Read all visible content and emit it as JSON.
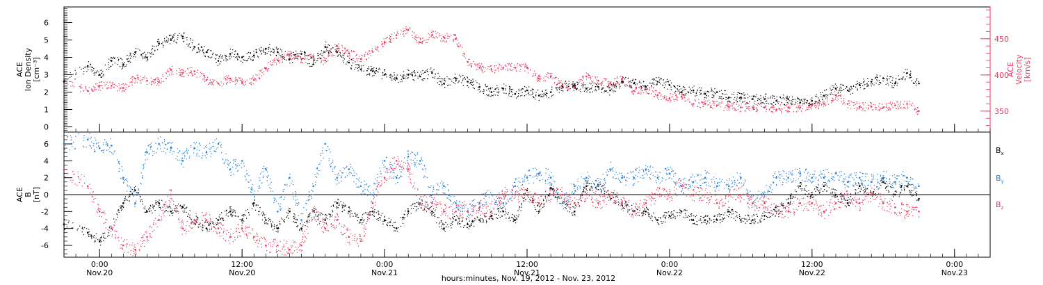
{
  "colors": {
    "axis": "#000000",
    "density": "#000000",
    "velocity": "#e8375f",
    "bx": "#000000",
    "by": "#1f7fdc",
    "bz": "#e8375f"
  },
  "chart_data": [
    {
      "type": "scatter",
      "panel": "top",
      "ylabel_lines": [
        "ACE",
        "Ion Density",
        "[cm⁻³]"
      ],
      "ylabel_right_lines": [
        "ACE",
        "Velocity",
        "[km/s]"
      ],
      "ylim": [
        -0.3,
        6.9
      ],
      "yticks": [
        "0",
        "1",
        "2",
        "3",
        "4",
        "5",
        "6"
      ],
      "ylim_right": [
        321,
        494
      ],
      "yticks_right": [
        "350",
        "400",
        "450"
      ],
      "xlim": [
        -3,
        75
      ],
      "series": [
        {
          "color_key": "density",
          "x": [
            -3,
            -1,
            0,
            1,
            2,
            3,
            4,
            5,
            6,
            7,
            8,
            9,
            10,
            11,
            12,
            13,
            14,
            15,
            16,
            17,
            18,
            19,
            20,
            21,
            22,
            23,
            24,
            25,
            26,
            27,
            28,
            29,
            30,
            31,
            32,
            33,
            34,
            35,
            36,
            37,
            38,
            39,
            40,
            41,
            42,
            43,
            44,
            45,
            46,
            47,
            48,
            49,
            50,
            51,
            52,
            53,
            54,
            55,
            56,
            57,
            58,
            59,
            60,
            61,
            62,
            63,
            64,
            65,
            66,
            67,
            68,
            69
          ],
          "y": [
            2.6,
            3.5,
            3.0,
            3.8,
            3.6,
            4.3,
            4.0,
            4.8,
            5.0,
            5.2,
            4.6,
            4.3,
            3.8,
            4.2,
            4.0,
            4.1,
            4.5,
            4.3,
            3.9,
            4.2,
            3.6,
            4.6,
            4.3,
            3.7,
            3.3,
            3.2,
            3.0,
            2.8,
            3.0,
            2.9,
            3.1,
            2.5,
            2.8,
            2.6,
            2.3,
            2.0,
            2.2,
            1.9,
            2.1,
            1.8,
            2.0,
            2.3,
            2.4,
            2.2,
            2.3,
            2.1,
            2.6,
            2.5,
            2.3,
            2.6,
            2.4,
            2.0,
            2.1,
            1.9,
            2.0,
            1.7,
            1.7,
            1.6,
            1.6,
            1.5,
            1.6,
            1.4,
            1.5,
            1.8,
            2.2,
            2.1,
            2.4,
            2.6,
            2.8,
            2.5,
            3.1,
            2.5
          ]
        },
        {
          "color_key": "velocity",
          "x": [
            -3,
            -1,
            0,
            1,
            2,
            3,
            4,
            5,
            6,
            7,
            8,
            9,
            10,
            11,
            12,
            13,
            14,
            15,
            16,
            17,
            18,
            19,
            20,
            21,
            22,
            23,
            24,
            25,
            26,
            27,
            28,
            29,
            30,
            31,
            32,
            33,
            34,
            35,
            36,
            37,
            38,
            39,
            40,
            41,
            42,
            43,
            44,
            45,
            46,
            47,
            48,
            49,
            50,
            51,
            52,
            53,
            54,
            55,
            56,
            57,
            58,
            59,
            60,
            61,
            62,
            63,
            64,
            65,
            66,
            67,
            68,
            69
          ],
          "y": [
            392,
            378,
            385,
            385,
            382,
            395,
            392,
            390,
            407,
            403,
            405,
            393,
            388,
            395,
            390,
            393,
            409,
            420,
            428,
            422,
            425,
            420,
            440,
            430,
            422,
            432,
            445,
            455,
            462,
            445,
            455,
            452,
            450,
            418,
            410,
            408,
            410,
            410,
            410,
            395,
            398,
            385,
            382,
            398,
            392,
            388,
            395,
            378,
            380,
            372,
            368,
            370,
            360,
            360,
            358,
            356,
            355,
            355,
            355,
            352,
            355,
            355,
            358,
            360,
            372,
            360,
            356,
            356,
            355,
            358,
            360,
            350
          ]
        }
      ]
    },
    {
      "type": "scatter",
      "panel": "bottom",
      "ylabel_lines": [
        "ACE",
        "B",
        "[nT]"
      ],
      "ylim": [
        -7.4,
        7.4
      ],
      "yticks": [
        "-6",
        "-4",
        "-2",
        "0",
        "2",
        "4",
        "6"
      ],
      "xlim": [
        -3,
        75
      ],
      "xlabel": "hours:minutes, Nov. 19, 2012 - Nov. 23, 2012",
      "xticks": [
        {
          "time": "0:00",
          "date": "Nov.20"
        },
        {
          "time": "12:00",
          "date": "Nov.20"
        },
        {
          "time": "0:00",
          "date": "Nov.21"
        },
        {
          "time": "12:00",
          "date": "Nov.21"
        },
        {
          "time": "0:00",
          "date": "Nov.22"
        },
        {
          "time": "12:00",
          "date": "Nov.22"
        },
        {
          "time": "0:00",
          "date": "Nov.23"
        }
      ],
      "legend": [
        {
          "label": "B",
          "sub": "x",
          "color_key": "bx"
        },
        {
          "label": "B",
          "sub": "y",
          "color_key": "by"
        },
        {
          "label": "B",
          "sub": "z",
          "color_key": "bz"
        }
      ],
      "series": [
        {
          "name": "Bx",
          "color_key": "bx",
          "x": [
            -3,
            -1,
            0,
            1,
            2,
            3,
            4,
            5,
            6,
            7,
            8,
            9,
            10,
            11,
            12,
            13,
            14,
            15,
            16,
            17,
            18,
            19,
            20,
            21,
            22,
            23,
            24,
            25,
            26,
            27,
            28,
            29,
            30,
            31,
            32,
            33,
            34,
            35,
            36,
            37,
            38,
            39,
            40,
            41,
            42,
            43,
            44,
            45,
            46,
            47,
            48,
            49,
            50,
            51,
            52,
            53,
            54,
            55,
            56,
            57,
            58,
            59,
            60,
            61,
            62,
            63,
            64,
            65,
            66,
            67,
            68,
            69
          ],
          "y": [
            -3.5,
            -4.5,
            -5.5,
            -4,
            -1,
            0.5,
            -2,
            -1,
            -2,
            -1.5,
            -3,
            -4,
            -3,
            -2,
            -3,
            -1,
            -3,
            -4,
            -2,
            -4,
            -2,
            -3,
            -1,
            -2,
            -3,
            -2,
            -3,
            -4,
            -2,
            -1,
            -2,
            -4,
            -3,
            -3.5,
            -3,
            -2.5,
            -2,
            -3,
            0.5,
            -2,
            0.8,
            -1,
            -2,
            1,
            1,
            0,
            -1,
            -2,
            -2,
            -3,
            -2.5,
            -2,
            -3,
            -3,
            -3,
            -2,
            -3,
            -3,
            -2.5,
            -2,
            -1,
            1,
            0,
            1,
            0,
            -1,
            1,
            0,
            1.5,
            0,
            1,
            -0.5
          ]
        },
        {
          "name": "By",
          "color_key": "by",
          "x": [
            -3,
            -1,
            0,
            1,
            2,
            3,
            4,
            5,
            6,
            7,
            8,
            9,
            10,
            11,
            12,
            13,
            14,
            15,
            16,
            17,
            18,
            19,
            20,
            21,
            22,
            23,
            24,
            25,
            26,
            27,
            28,
            29,
            30,
            31,
            32,
            33,
            34,
            35,
            36,
            37,
            38,
            39,
            40,
            41,
            42,
            43,
            44,
            45,
            46,
            47,
            48,
            49,
            50,
            51,
            52,
            53,
            54,
            55,
            56,
            57,
            58,
            59,
            60,
            61,
            62,
            63,
            64,
            65,
            66,
            67,
            68,
            69
          ],
          "y": [
            6,
            6.5,
            5.5,
            5.8,
            2,
            -1,
            5,
            6,
            5.5,
            4,
            5.5,
            5,
            6,
            3,
            4,
            0,
            3,
            -2,
            2,
            -3,
            1,
            6,
            2,
            3,
            1,
            0,
            4,
            2,
            4.5,
            4,
            0,
            1,
            -1,
            -2,
            -1,
            0,
            -1,
            1,
            2,
            2.5,
            2,
            -1,
            1,
            2,
            1,
            3,
            2,
            2,
            3,
            2,
            2.5,
            1,
            1.5,
            2,
            1,
            1,
            2,
            -1,
            0,
            2,
            2,
            2.5,
            2,
            2,
            2.5,
            1.5,
            2,
            1.5,
            2,
            1.5,
            2,
            1
          ]
        },
        {
          "name": "Bz",
          "color_key": "bz",
          "x": [
            -3,
            -1,
            0,
            1,
            2,
            3,
            4,
            5,
            6,
            7,
            8,
            9,
            10,
            11,
            12,
            13,
            14,
            15,
            16,
            17,
            18,
            19,
            20,
            21,
            22,
            23,
            24,
            25,
            26,
            27,
            28,
            29,
            30,
            31,
            32,
            33,
            34,
            35,
            36,
            37,
            38,
            39,
            40,
            41,
            42,
            43,
            44,
            45,
            46,
            47,
            48,
            49,
            50,
            51,
            52,
            53,
            54,
            55,
            56,
            57,
            58,
            59,
            60,
            61,
            62,
            63,
            64,
            65,
            66,
            67,
            68,
            69
          ],
          "y": [
            3,
            1,
            -2,
            -4,
            -6,
            -6.5,
            -5,
            -3,
            0,
            -4,
            -3,
            -3,
            -4,
            -5,
            -4,
            -5,
            -6,
            -6,
            -6.5,
            -6,
            -2,
            -4,
            -3,
            -5,
            -5.5,
            -1,
            2,
            4,
            3,
            -1,
            -1,
            -2,
            -2,
            -2,
            -1.5,
            -2,
            0,
            0,
            0,
            -1,
            0,
            0,
            -1,
            0,
            -1,
            0,
            -1,
            -2,
            -1,
            0,
            0,
            1,
            0,
            0,
            -1,
            0,
            0,
            -1,
            -1,
            -2,
            -2,
            -1,
            -1,
            -2,
            -1,
            0,
            -1,
            0,
            -1,
            -1.5,
            -2,
            -2
          ]
        }
      ]
    }
  ]
}
